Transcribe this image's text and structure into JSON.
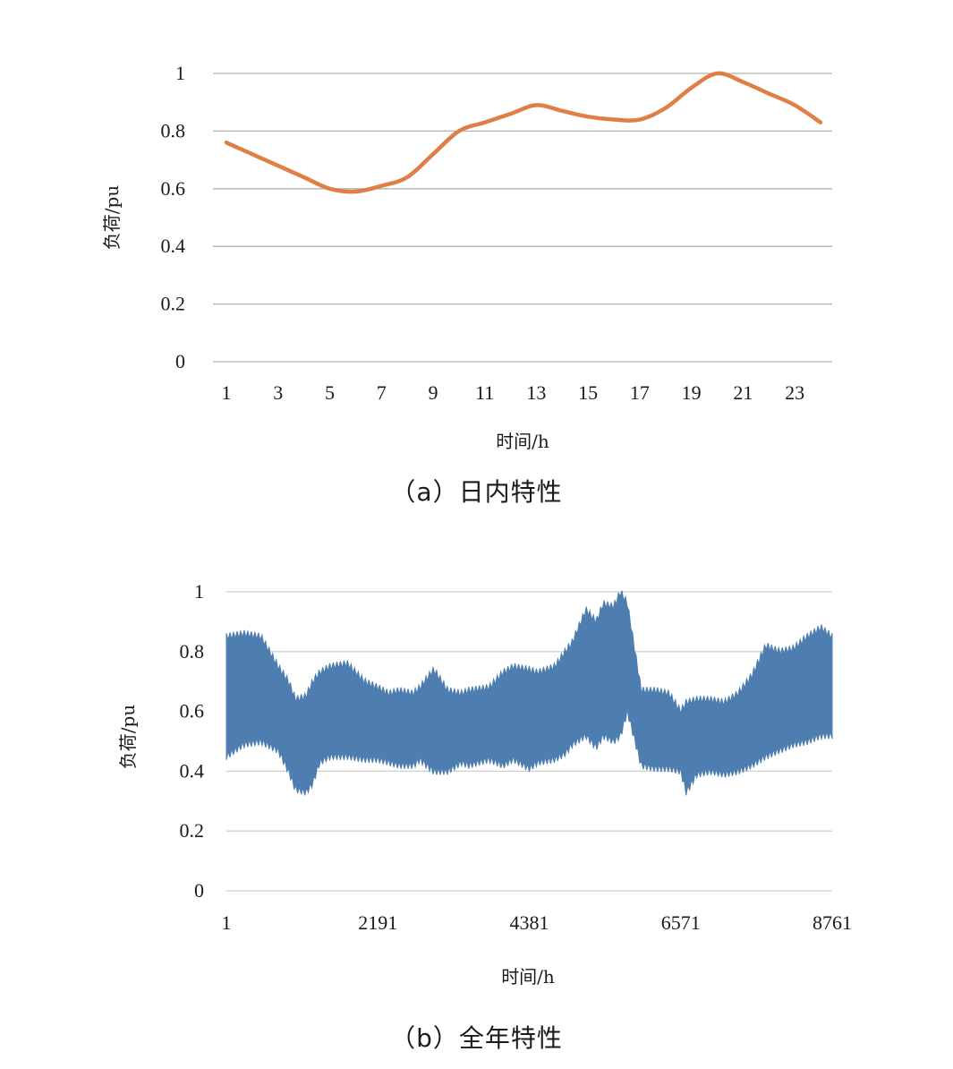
{
  "chart_data": [
    {
      "type": "line",
      "caption": "（a）日内特性",
      "xlabel": "时间/h",
      "ylabel": "负荷/pu",
      "ylim": [
        0,
        1
      ],
      "yticks": [
        "0",
        "0.2",
        "0.4",
        "0.6",
        "0.8",
        "1"
      ],
      "xtick_labels": [
        "1",
        "3",
        "5",
        "7",
        "9",
        "11",
        "13",
        "15",
        "17",
        "19",
        "21",
        "23"
      ],
      "grid": true,
      "colors": {
        "line": "#E07F45",
        "grid": "#B3B3B3"
      },
      "series": [
        {
          "x": [
            1,
            2,
            3,
            4,
            5,
            6,
            7,
            8,
            9,
            10,
            11,
            12,
            13,
            14,
            15,
            16,
            17,
            18,
            19,
            20,
            21,
            22,
            23,
            24
          ],
          "values": [
            0.76,
            0.72,
            0.68,
            0.64,
            0.6,
            0.59,
            0.61,
            0.64,
            0.72,
            0.8,
            0.83,
            0.86,
            0.89,
            0.87,
            0.85,
            0.84,
            0.84,
            0.88,
            0.95,
            1.0,
            0.97,
            0.93,
            0.89,
            0.83
          ]
        }
      ]
    },
    {
      "type": "area",
      "caption": "（b）全年特性",
      "xlabel": "时间/h",
      "ylabel": "负荷/pu",
      "ylim": [
        0,
        1
      ],
      "xlim": [
        1,
        8761
      ],
      "yticks": [
        "0",
        "0.2",
        "0.4",
        "0.6",
        "0.8",
        "1"
      ],
      "xtick_labels": [
        "1",
        "2191",
        "4381",
        "6571",
        "8761"
      ],
      "xtick_values": [
        1,
        2191,
        4381,
        6571,
        8761
      ],
      "grid": true,
      "colors": {
        "fill": "#4E7EB0",
        "grid": "#CFCFCF"
      },
      "series": [
        {
          "x": [
            1,
            250,
            500,
            750,
            900,
            1000,
            1150,
            1250,
            1350,
            1500,
            1750,
            2000,
            2191,
            2350,
            2500,
            2700,
            2800,
            3000,
            3200,
            3400,
            3500,
            3800,
            4000,
            4150,
            4381,
            4500,
            4750,
            4900,
            5000,
            5200,
            5350,
            5450,
            5600,
            5700,
            5800,
            6000,
            6200,
            6400,
            6571,
            6650,
            6800,
            7000,
            7200,
            7400,
            7600,
            7800,
            8000,
            8200,
            8400,
            8600,
            8761
          ],
          "upper": [
            0.85,
            0.86,
            0.85,
            0.75,
            0.7,
            0.64,
            0.65,
            0.7,
            0.73,
            0.75,
            0.76,
            0.7,
            0.68,
            0.66,
            0.67,
            0.66,
            0.68,
            0.74,
            0.67,
            0.66,
            0.67,
            0.68,
            0.73,
            0.75,
            0.74,
            0.73,
            0.75,
            0.8,
            0.83,
            0.94,
            0.9,
            0.96,
            0.95,
            1.0,
            0.96,
            0.67,
            0.67,
            0.66,
            0.6,
            0.63,
            0.64,
            0.64,
            0.63,
            0.66,
            0.72,
            0.82,
            0.8,
            0.81,
            0.85,
            0.88,
            0.85
          ],
          "lower": [
            0.45,
            0.49,
            0.5,
            0.47,
            0.4,
            0.34,
            0.33,
            0.36,
            0.43,
            0.45,
            0.45,
            0.44,
            0.44,
            0.43,
            0.42,
            0.42,
            0.44,
            0.4,
            0.4,
            0.43,
            0.42,
            0.44,
            0.42,
            0.44,
            0.41,
            0.43,
            0.44,
            0.46,
            0.49,
            0.52,
            0.48,
            0.52,
            0.5,
            0.52,
            0.6,
            0.42,
            0.41,
            0.41,
            0.4,
            0.33,
            0.39,
            0.4,
            0.39,
            0.4,
            0.42,
            0.45,
            0.47,
            0.49,
            0.5,
            0.52,
            0.52
          ]
        }
      ]
    }
  ]
}
